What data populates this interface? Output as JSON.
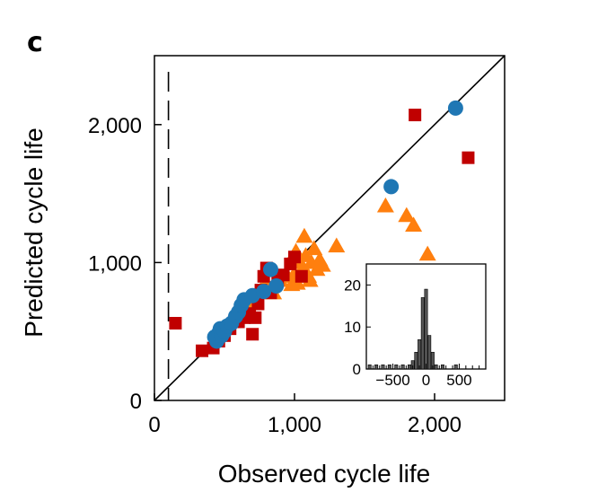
{
  "chart_data": [
    {
      "type": "scatter",
      "panel_label": "c",
      "xlabel": "Observed cycle life",
      "ylabel": "Predicted cycle life",
      "xlim": [
        0,
        2500
      ],
      "ylim": [
        0,
        2500
      ],
      "x_ticks": [
        0,
        1000,
        2000
      ],
      "x_tick_labels": [
        "0",
        "1,000",
        "2,000"
      ],
      "y_ticks": [
        0,
        1000,
        2000
      ],
      "y_tick_labels": [
        "0",
        "1,000",
        "2,000"
      ],
      "reference_line": "y = x",
      "vertical_dashed_line_x": 100,
      "grid": false,
      "series": [
        {
          "marker": "circle",
          "color": "#1f77b4",
          "points": [
            [
              430,
              460
            ],
            [
              445,
              430
            ],
            [
              460,
              490
            ],
            [
              470,
              520
            ],
            [
              480,
              470
            ],
            [
              500,
              500
            ],
            [
              520,
              540
            ],
            [
              550,
              560
            ],
            [
              580,
              610
            ],
            [
              600,
              640
            ],
            [
              620,
              690
            ],
            [
              640,
              730
            ],
            [
              700,
              760
            ],
            [
              780,
              790
            ],
            [
              830,
              950
            ],
            [
              870,
              830
            ],
            [
              1690,
              1550
            ],
            [
              2150,
              2120
            ]
          ]
        },
        {
          "marker": "triangle",
          "color": "#ff7f0e",
          "points": [
            [
              560,
              580
            ],
            [
              600,
              610
            ],
            [
              640,
              700
            ],
            [
              680,
              720
            ],
            [
              720,
              760
            ],
            [
              760,
              800
            ],
            [
              800,
              850
            ],
            [
              850,
              780
            ],
            [
              900,
              870
            ],
            [
              950,
              900
            ],
            [
              1000,
              920
            ],
            [
              1020,
              850
            ],
            [
              1040,
              1000
            ],
            [
              1060,
              960
            ],
            [
              1080,
              1050
            ],
            [
              1100,
              900
            ],
            [
              1120,
              1000
            ],
            [
              1140,
              1100
            ],
            [
              1160,
              950
            ],
            [
              1180,
              1020
            ],
            [
              1200,
              980
            ],
            [
              1300,
              1120
            ],
            [
              1650,
              1410
            ],
            [
              1800,
              1340
            ],
            [
              1850,
              1270
            ],
            [
              1950,
              1060
            ],
            [
              1070,
              1190
            ],
            [
              980,
              840
            ],
            [
              1010,
              1080
            ],
            [
              1110,
              870
            ]
          ]
        },
        {
          "marker": "square",
          "color": "#c00000",
          "points": [
            [
              150,
              560
            ],
            [
              340,
              360
            ],
            [
              420,
              380
            ],
            [
              460,
              430
            ],
            [
              500,
              470
            ],
            [
              540,
              520
            ],
            [
              570,
              570
            ],
            [
              600,
              570
            ],
            [
              640,
              600
            ],
            [
              680,
              630
            ],
            [
              700,
              480
            ],
            [
              720,
              600
            ],
            [
              740,
              700
            ],
            [
              760,
              800
            ],
            [
              780,
              900
            ],
            [
              800,
              960
            ],
            [
              830,
              780
            ],
            [
              880,
              870
            ],
            [
              920,
              910
            ],
            [
              970,
              990
            ],
            [
              1000,
              1040
            ],
            [
              1050,
              900
            ],
            [
              1860,
              2070
            ],
            [
              2240,
              1760
            ]
          ]
        }
      ]
    },
    {
      "type": "bar",
      "role": "inset histogram",
      "xlim": [
        -900,
        900
      ],
      "ylim": [
        0,
        25
      ],
      "x_ticks": [
        -500,
        0,
        500
      ],
      "x_tick_labels": [
        "−500",
        "0",
        "500"
      ],
      "y_ticks": [
        0,
        10,
        20
      ],
      "y_tick_labels": [
        "0",
        "10",
        "20"
      ],
      "bar_color": "#555555",
      "bins": [
        {
          "x": -850,
          "count": 1
        },
        {
          "x": -750,
          "count": 1
        },
        {
          "x": -650,
          "count": 1
        },
        {
          "x": -550,
          "count": 1
        },
        {
          "x": -450,
          "count": 1
        },
        {
          "x": -350,
          "count": 1
        },
        {
          "x": -250,
          "count": 1
        },
        {
          "x": -200,
          "count": 2
        },
        {
          "x": -150,
          "count": 4
        },
        {
          "x": -100,
          "count": 7
        },
        {
          "x": -50,
          "count": 17
        },
        {
          "x": 0,
          "count": 19
        },
        {
          "x": 50,
          "count": 8
        },
        {
          "x": 100,
          "count": 4
        },
        {
          "x": 150,
          "count": 1
        },
        {
          "x": 250,
          "count": 1
        },
        {
          "x": 450,
          "count": 1
        }
      ]
    }
  ]
}
